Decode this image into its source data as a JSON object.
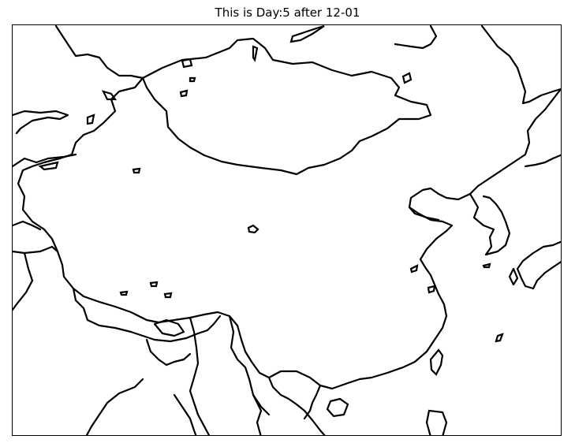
{
  "title": "This is Day:5 after 12-01"
}
